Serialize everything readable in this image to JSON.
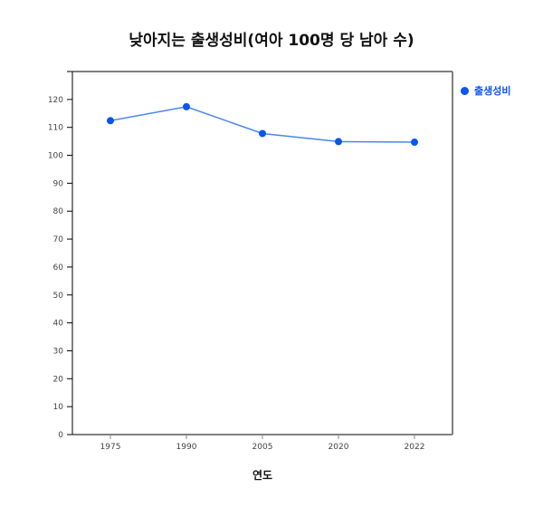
{
  "chart_data": {
    "type": "line",
    "title": "낮아지는 출생성비(여아 100명 당 남아 수)",
    "xlabel": "연도",
    "ylabel": "",
    "categories": [
      "1975",
      "1990",
      "2005",
      "2020",
      "2022"
    ],
    "series": [
      {
        "name": "출생성비",
        "color": "#0a55f0",
        "values": [
          112.4,
          117.4,
          107.8,
          104.9,
          104.7
        ]
      }
    ],
    "ylim": [
      0,
      130
    ],
    "yticks": [
      0,
      10,
      20,
      30,
      40,
      50,
      60,
      70,
      80,
      90,
      100,
      110,
      120
    ],
    "grid": false,
    "legend_position": "right"
  },
  "colors": {
    "series": "#0a55f0",
    "line": "#4a86f0",
    "frame": "#808080",
    "axis": "#000000"
  }
}
